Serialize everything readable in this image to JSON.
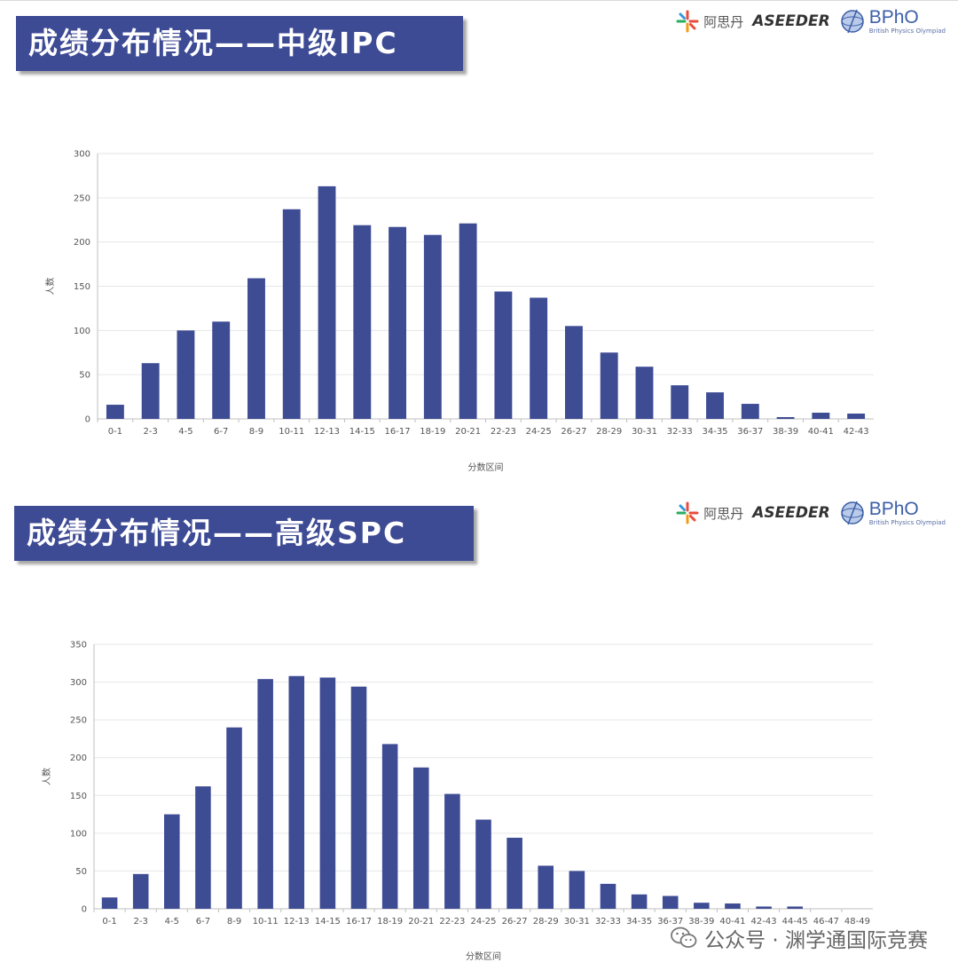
{
  "header_ipc": {
    "title": "成绩分布情况——中级IPC"
  },
  "header_spc": {
    "title": "成绩分布情况——高级SPC"
  },
  "logos": {
    "asidan": "阿思丹",
    "aseeder": "ASEEDER",
    "bpho": "BPhO",
    "bpho_sub": "British Physics Olympiad"
  },
  "watermark": {
    "text": "公众号 · 渊学通国际竞赛"
  },
  "colors": {
    "bar": "#3e4c94",
    "banner": "#3d4a94",
    "grid": "#e6e6e6",
    "axis": "#bfbfbf"
  },
  "chart_data": [
    {
      "type": "bar",
      "title": "成绩分布情况——中级IPC",
      "xlabel": "分数区间",
      "ylabel": "人数",
      "ylim": [
        0,
        300
      ],
      "yticks": [
        0,
        50,
        100,
        150,
        200,
        250,
        300
      ],
      "grid": true,
      "categories": [
        "0-1",
        "2-3",
        "4-5",
        "6-7",
        "8-9",
        "10-11",
        "12-13",
        "14-15",
        "16-17",
        "18-19",
        "20-21",
        "22-23",
        "24-25",
        "26-27",
        "28-29",
        "30-31",
        "32-33",
        "34-35",
        "36-37",
        "38-39",
        "40-41",
        "42-43"
      ],
      "values": [
        16,
        63,
        100,
        110,
        159,
        237,
        263,
        219,
        217,
        208,
        221,
        144,
        137,
        105,
        75,
        59,
        38,
        30,
        17,
        2,
        7,
        6
      ]
    },
    {
      "type": "bar",
      "title": "成绩分布情况——高级SPC",
      "xlabel": "分数区间",
      "ylabel": "人数",
      "ylim": [
        0,
        350
      ],
      "yticks": [
        0,
        50,
        100,
        150,
        200,
        250,
        300,
        350
      ],
      "grid": true,
      "categories": [
        "0-1",
        "2-3",
        "4-5",
        "6-7",
        "8-9",
        "10-11",
        "12-13",
        "14-15",
        "16-17",
        "18-19",
        "20-21",
        "22-23",
        "24-25",
        "26-27",
        "28-29",
        "30-31",
        "32-33",
        "34-35",
        "36-37",
        "38-39",
        "40-41",
        "42-43",
        "44-45",
        "46-47",
        "48-49"
      ],
      "values": [
        15,
        46,
        125,
        162,
        240,
        304,
        308,
        306,
        294,
        218,
        187,
        152,
        118,
        94,
        57,
        50,
        33,
        19,
        17,
        8,
        7,
        3,
        3,
        0,
        0
      ]
    }
  ]
}
